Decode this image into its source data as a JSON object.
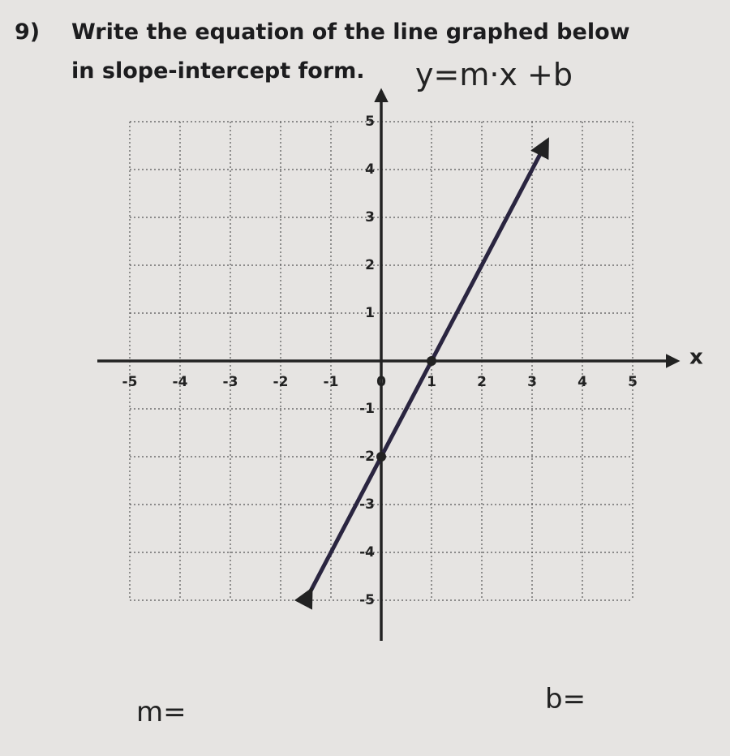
{
  "question": {
    "number": "9)",
    "line1": "Write the equation of the line graphed below",
    "line2": "in slope-intercept form.",
    "handwritten": "y=m·x +b"
  },
  "graph": {
    "xlim": [
      -5,
      5
    ],
    "ylim": [
      -5,
      5
    ],
    "xticks": [
      -5,
      -4,
      -3,
      -2,
      -1,
      0,
      1,
      2,
      3,
      4,
      5
    ],
    "yticks": [
      5,
      4,
      3,
      2,
      1,
      -1,
      -2,
      -3,
      -4,
      -5
    ],
    "x_label": "x",
    "line": {
      "from": [
        -1.4,
        -4.8
      ],
      "to": [
        3.3,
        4.6
      ]
    },
    "points": [
      [
        0,
        -2
      ],
      [
        1,
        0
      ]
    ]
  },
  "answers": {
    "m_label": "m=",
    "b_label": "b="
  }
}
